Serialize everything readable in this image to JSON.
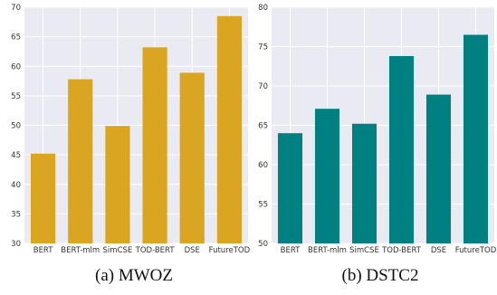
{
  "chart_data": [
    {
      "type": "bar",
      "caption": "(a)  MWOZ",
      "categories": [
        "BERT",
        "BERT-mlm",
        "SimCSE",
        "TOD-BERT",
        "DSE",
        "FutureTOD"
      ],
      "values": [
        45.2,
        57.8,
        49.9,
        63.2,
        58.9,
        68.5
      ],
      "ylim": [
        30,
        70
      ],
      "yticks": [
        30,
        35,
        40,
        45,
        50,
        55,
        60,
        65,
        70
      ],
      "grid": true,
      "color": "#DAA520",
      "xlabel": "",
      "ylabel": ""
    },
    {
      "type": "bar",
      "caption": "(b)  DSTC2",
      "categories": [
        "BERT",
        "BERT-mlm",
        "SimCSE",
        "TOD-BERT",
        "DSE",
        "FutureTOD"
      ],
      "values": [
        64.0,
        67.1,
        65.2,
        73.8,
        68.9,
        76.5
      ],
      "ylim": [
        50,
        80
      ],
      "yticks": [
        50,
        55,
        60,
        65,
        70,
        75,
        80
      ],
      "grid": true,
      "color": "#008080",
      "xlabel": "",
      "ylabel": ""
    }
  ]
}
